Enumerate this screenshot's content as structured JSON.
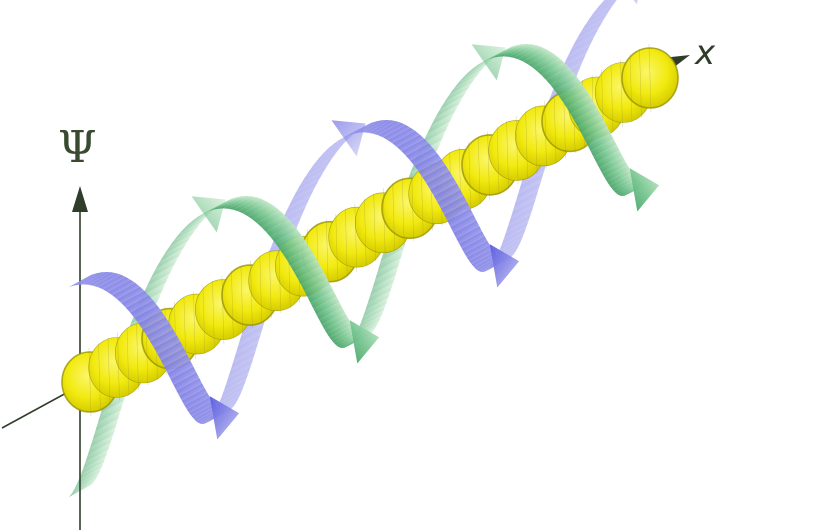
{
  "labels": {
    "psi": "Ψ",
    "x": "x"
  },
  "colors": {
    "axis": "#2f3d2a",
    "wave_core": "#f2ea10",
    "wave_core_edge": "#9a9400",
    "helix_blue": "#5757dd",
    "helix_blue_light": "#b8b8ee",
    "helix_green": "#4aa86a",
    "helix_green_light": "#bfe6c4",
    "background": "#ffffff"
  }
}
